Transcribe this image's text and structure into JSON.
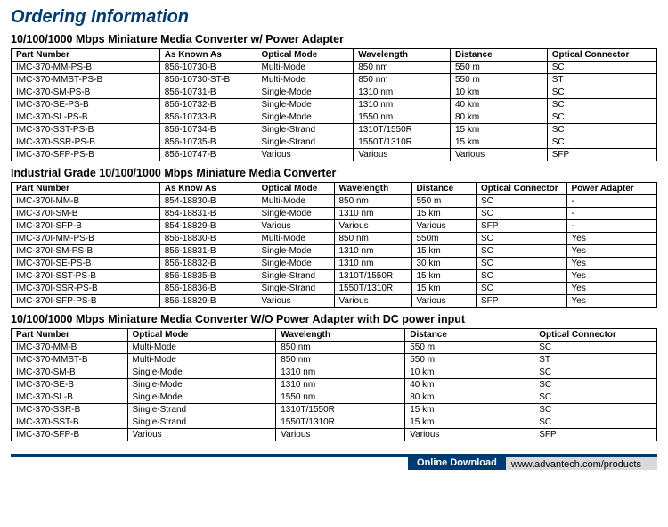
{
  "page_title": "Ordering Information",
  "sections": [
    {
      "title": "10/100/1000 Mbps Miniature Media Converter w/ Power Adapter",
      "columns": [
        "Part Number",
        "As Known As",
        "Optical Mode",
        "Wavelength",
        "Distance",
        "Optical Connector"
      ],
      "col_widths": [
        "23%",
        "15%",
        "15%",
        "15%",
        "15%",
        "17%"
      ],
      "rows": [
        [
          "IMC-370-MM-PS-B",
          "856-10730-B",
          "Multi-Mode",
          "850 nm",
          "550 m",
          "SC"
        ],
        [
          "IMC-370-MMST-PS-B",
          "856-10730-ST-B",
          "Multi-Mode",
          "850 nm",
          "550 m",
          "ST"
        ],
        [
          "IMC-370-SM-PS-B",
          "856-10731-B",
          "Single-Mode",
          "1310 nm",
          "10 km",
          "SC"
        ],
        [
          "IMC-370-SE-PS-B",
          "856-10732-B",
          "Single-Mode",
          "1310 nm",
          "40 km",
          "SC"
        ],
        [
          "IMC-370-SL-PS-B",
          "856-10733-B",
          "Single-Mode",
          "1550 nm",
          "80 km",
          "SC"
        ],
        [
          "IMC-370-SST-PS-B",
          "856-10734-B",
          "Single-Strand",
          "1310T/1550R",
          "15 km",
          "SC"
        ],
        [
          "IMC-370-SSR-PS-B",
          "856-10735-B",
          "Single-Strand",
          "1550T/1310R",
          "15 km",
          "SC"
        ],
        [
          "IMC-370-SFP-PS-B",
          "856-10747-B",
          "Various",
          "Various",
          "Various",
          "SFP"
        ]
      ]
    },
    {
      "title": "Industrial Grade 10/100/1000 Mbps Miniature Media Converter",
      "columns": [
        "Part Number",
        "As Know As",
        "Optical Mode",
        "Wavelength",
        "Distance",
        "Optical Connector",
        "Power Adapter"
      ],
      "col_widths": [
        "23%",
        "15%",
        "12%",
        "12%",
        "10%",
        "14%",
        "14%"
      ],
      "rows": [
        [
          "IMC-370I-MM-B",
          "854-18830-B",
          "Multi-Mode",
          "850 nm",
          "550 m",
          "SC",
          "-"
        ],
        [
          "IMC-370I-SM-B",
          "854-18831-B",
          "Single-Mode",
          "1310 nm",
          "15 km",
          "SC",
          "-"
        ],
        [
          "IMC-370I-SFP-B",
          "854-18829-B",
          "Various",
          "Various",
          "Various",
          "SFP",
          "-"
        ],
        [
          "IMC-370I-MM-PS-B",
          "856-18830-B",
          "Multi-Mode",
          "850 nm",
          "550m",
          "SC",
          "Yes"
        ],
        [
          "IMC-370I-SM-PS-B",
          "856-18831-B",
          "Single-Mode",
          "1310 nm",
          "15 km",
          "SC",
          "Yes"
        ],
        [
          "IMC-370I-SE-PS-B",
          "856-18832-B",
          "Single-Mode",
          "1310 nm",
          "30 km",
          "SC",
          "Yes"
        ],
        [
          "IMC-370I-SST-PS-B",
          "856-18835-B",
          "Single-Strand",
          "1310T/1550R",
          "15 km",
          "SC",
          "Yes"
        ],
        [
          "IMC-370I-SSR-PS-B",
          "856-18836-B",
          "Single-Strand",
          "1550T/1310R",
          "15 km",
          "SC",
          "Yes"
        ],
        [
          "IMC-370I-SFP-PS-B",
          "856-18829-B",
          "Various",
          "Various",
          "Various",
          "SFP",
          "Yes"
        ]
      ]
    },
    {
      "title": "10/100/1000 Mbps Miniature Media Converter W/O Power Adapter with DC power input",
      "columns": [
        "Part Number",
        "Optical Mode",
        "Wavelength",
        "Distance",
        "Optical Connector"
      ],
      "col_widths": [
        "18%",
        "23%",
        "20%",
        "20%",
        "19%"
      ],
      "rows": [
        [
          "IMC-370-MM-B",
          "Multi-Mode",
          "850 nm",
          "550 m",
          "SC"
        ],
        [
          "IMC-370-MMST-B",
          "Multi-Mode",
          "850 nm",
          "550 m",
          "ST"
        ],
        [
          "IMC-370-SM-B",
          "Single-Mode",
          "1310 nm",
          "10 km",
          "SC"
        ],
        [
          "IMC-370-SE-B",
          "Single-Mode",
          "1310 nm",
          "40 km",
          "SC"
        ],
        [
          "IMC-370-SL-B",
          "Single-Mode",
          "1550 nm",
          "80 km",
          "SC"
        ],
        [
          "IMC-370-SSR-B",
          "Single-Strand",
          "1310T/1550R",
          "15 km",
          "SC"
        ],
        [
          "IMC-370-SST-B",
          "Single-Strand",
          "1550T/1310R",
          "15 km",
          "SC"
        ],
        [
          "IMC-370-SFP-B",
          "Various",
          "Various",
          "Various",
          "SFP"
        ]
      ]
    }
  ],
  "footer": {
    "label": "Online Download",
    "url": "www.advantech.com/products"
  }
}
